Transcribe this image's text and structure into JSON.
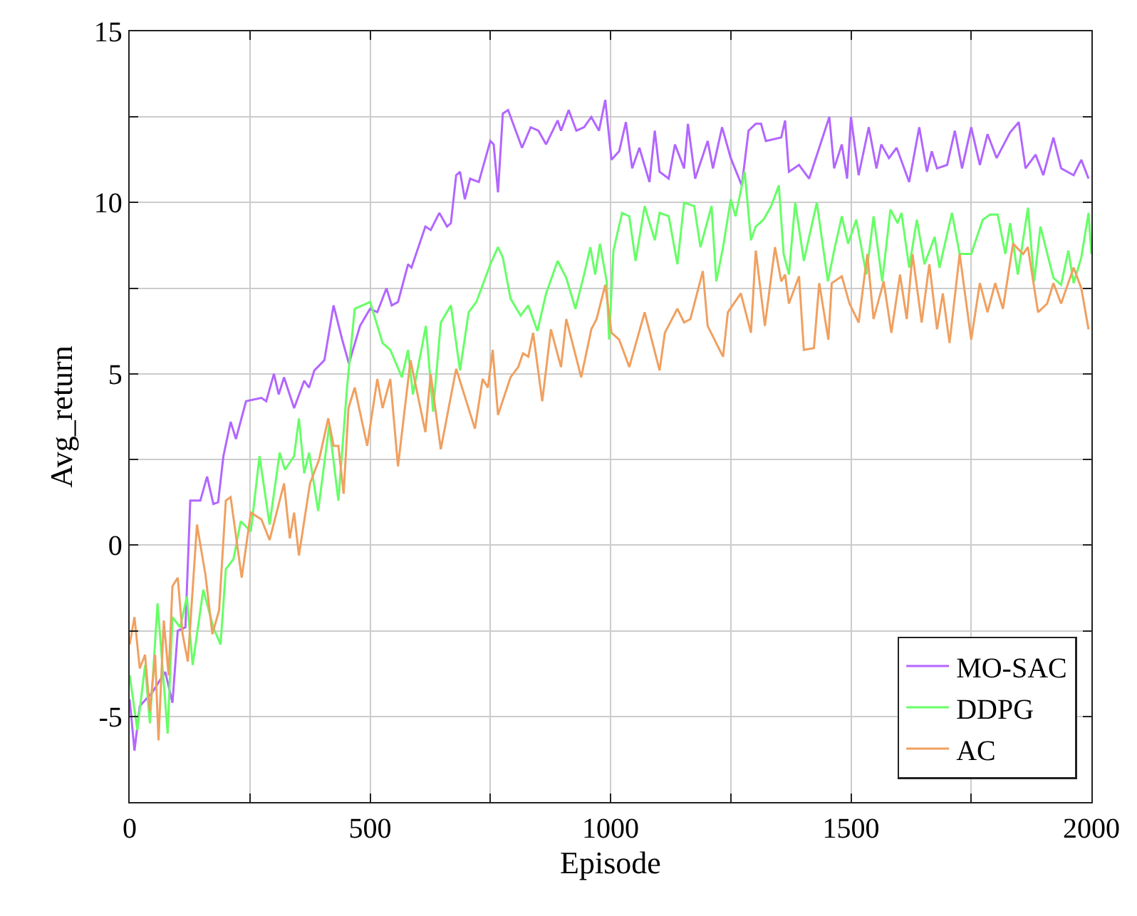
{
  "chart_data": {
    "type": "line",
    "xlabel": "Episode",
    "ylabel": "Avg_return",
    "xlim": [
      0,
      2000
    ],
    "ylim": [
      -7.5,
      15
    ],
    "xticks": [
      0,
      {
        "value": 250,
        "label": null
      },
      500,
      {
        "value": 750,
        "label": null
      },
      1000,
      {
        "value": 1250,
        "label": null
      },
      1500,
      {
        "value": 1750,
        "label": null
      },
      2000
    ],
    "yticks": [
      {
        "value": -7.5,
        "label": null
      },
      -5,
      {
        "value": -2.5,
        "label": null
      },
      0,
      {
        "value": 2.5,
        "label": null
      },
      5,
      {
        "value": 7.5,
        "label": null
      },
      10,
      {
        "value": 12.5,
        "label": null
      },
      15
    ],
    "grid": true,
    "legend": "bottom right",
    "line_style": "solid",
    "marker": "none",
    "series": [
      {
        "name": "MO-SAC",
        "color": "#b266ff",
        "x": [
          0,
          10,
          21,
          47,
          74,
          89,
          100,
          116,
          126,
          147,
          161,
          174,
          184,
          195,
          210,
          221,
          242,
          274,
          284,
          300,
          310,
          321,
          342,
          363,
          373,
          384,
          405,
          424,
          442,
          456,
          479,
          500,
          515,
          534,
          545,
          558,
          579,
          586,
          615,
          626,
          644,
          660,
          668,
          679,
          687,
          697,
          708,
          726,
          750,
          757,
          766,
          776,
          787,
          816,
          834,
          850,
          866,
          890,
          897,
          913,
          929,
          945,
          960,
          976,
          989,
          1002,
          1018,
          1032,
          1045,
          1060,
          1081,
          1092,
          1102,
          1121,
          1134,
          1153,
          1161,
          1176,
          1202,
          1213,
          1232,
          1250,
          1273,
          1287,
          1302,
          1313,
          1323,
          1355,
          1363,
          1371,
          1392,
          1413,
          1434,
          1455,
          1465,
          1481,
          1492,
          1500,
          1516,
          1537,
          1553,
          1563,
          1579,
          1595,
          1621,
          1642,
          1658,
          1668,
          1679,
          1700,
          1716,
          1731,
          1750,
          1768,
          1784,
          1803,
          1831,
          1849,
          1863,
          1884,
          1900,
          1921,
          1937,
          1963,
          1979,
          1994
        ],
        "values": [
          -4.5,
          -6,
          -4.7,
          -4.3,
          -3.7,
          -4.6,
          -2.5,
          -2.4,
          1.3,
          1.3,
          2.0,
          1.2,
          1.25,
          2.6,
          3.6,
          3.1,
          4.2,
          4.3,
          4.2,
          5.0,
          4.4,
          4.9,
          4.0,
          4.8,
          4.6,
          5.1,
          5.4,
          7.0,
          6.0,
          5.3,
          6.4,
          6.9,
          6.8,
          7.5,
          7.0,
          7.1,
          8.2,
          8.1,
          9.3,
          9.2,
          9.7,
          9.3,
          9.4,
          10.8,
          10.9,
          10.1,
          10.7,
          10.6,
          11.8,
          11.7,
          10.3,
          12.6,
          12.7,
          11.6,
          12.2,
          12.1,
          11.7,
          12.4,
          12.1,
          12.7,
          12.1,
          12.2,
          12.5,
          12.1,
          13.0,
          11.25,
          11.5,
          12.35,
          11.0,
          11.6,
          10.6,
          12.1,
          10.9,
          10.7,
          11.7,
          11.0,
          12.3,
          10.7,
          11.8,
          11.0,
          12.2,
          11.3,
          10.5,
          12.1,
          12.3,
          12.3,
          11.8,
          11.9,
          12.4,
          10.9,
          11.1,
          10.7,
          11.6,
          12.5,
          11.0,
          11.7,
          10.7,
          12.5,
          10.8,
          12.2,
          11.0,
          11.7,
          11.3,
          11.6,
          10.6,
          12.2,
          10.9,
          11.5,
          11.0,
          11.1,
          12.1,
          11.0,
          12.2,
          11.1,
          12.0,
          11.3,
          12.05,
          12.35,
          11.0,
          11.4,
          10.8,
          11.9,
          11.0,
          10.8,
          11.25,
          10.7
        ]
      },
      {
        "name": "DDPG",
        "color": "#66ff66",
        "x": [
          0,
          16,
          32,
          42,
          58,
          68,
          79,
          89,
          105,
          119,
          131,
          153,
          174,
          189,
          200,
          216,
          231,
          252,
          270,
          291,
          312,
          323,
          342,
          352,
          363,
          373,
          392,
          415,
          434,
          452,
          468,
          500,
          526,
          542,
          566,
          579,
          589,
          616,
          631,
          647,
          668,
          687,
          705,
          721,
          750,
          766,
          776,
          792,
          813,
          829,
          848,
          866,
          890,
          908,
          927,
          945,
          958,
          968,
          978,
          992,
          997,
          1006,
          1024,
          1039,
          1052,
          1071,
          1092,
          1102,
          1121,
          1139,
          1153,
          1174,
          1187,
          1210,
          1220,
          1234,
          1250,
          1260,
          1279,
          1292,
          1302,
          1318,
          1334,
          1350,
          1360,
          1371,
          1384,
          1402,
          1429,
          1452,
          1465,
          1481,
          1494,
          1511,
          1532,
          1547,
          1565,
          1582,
          1597,
          1605,
          1621,
          1637,
          1653,
          1674,
          1684,
          1710,
          1726,
          1750,
          1774,
          1789,
          1805,
          1821,
          1831,
          1847,
          1868,
          1881,
          1894,
          1921,
          1937,
          1952,
          1963,
          1979,
          1994,
          2000
        ],
        "values": [
          -3.8,
          -5.4,
          -3.5,
          -5.2,
          -1.7,
          -3.5,
          -5.5,
          -2.1,
          -2.4,
          -1.5,
          -3.5,
          -1.3,
          -2.4,
          -2.9,
          -0.7,
          -0.4,
          0.7,
          0.4,
          2.6,
          0.6,
          2.7,
          2.2,
          2.6,
          3.7,
          2.1,
          2.7,
          1.0,
          3.5,
          1.3,
          4.6,
          6.9,
          7.1,
          5.9,
          5.7,
          4.9,
          5.7,
          4.4,
          6.4,
          3.9,
          6.5,
          7.0,
          5.1,
          6.8,
          7.1,
          8.2,
          8.7,
          8.4,
          7.2,
          6.7,
          7.0,
          6.25,
          7.35,
          8.3,
          7.8,
          6.9,
          7.9,
          8.7,
          7.9,
          8.8,
          7.7,
          6.0,
          8.6,
          9.7,
          9.6,
          8.3,
          9.9,
          8.9,
          9.7,
          9.6,
          8.2,
          10.0,
          9.9,
          8.7,
          9.9,
          7.7,
          8.7,
          10.1,
          9.6,
          10.9,
          8.9,
          9.3,
          9.5,
          9.9,
          10.5,
          8.5,
          7.9,
          10.0,
          8.3,
          10.0,
          7.7,
          8.6,
          9.6,
          8.8,
          9.5,
          7.9,
          9.6,
          7.7,
          9.8,
          9.4,
          9.7,
          8.1,
          9.5,
          8.2,
          9.0,
          8.1,
          9.7,
          8.5,
          8.5,
          9.5,
          9.65,
          9.65,
          8.5,
          9.4,
          7.9,
          9.85,
          7.7,
          9.3,
          7.8,
          7.6,
          8.6,
          7.65,
          8.4,
          9.7,
          8.5
        ]
      },
      {
        "name": "AC",
        "color": "#f0a060",
        "x": [
          0,
          10,
          21,
          32,
          42,
          53,
          60,
          71,
          81,
          89,
          100,
          110,
          121,
          140,
          158,
          172,
          186,
          200,
          210,
          233,
          252,
          274,
          291,
          321,
          333,
          342,
          352,
          375,
          394,
          413,
          424,
          434,
          445,
          455,
          468,
          494,
          515,
          526,
          542,
          558,
          584,
          615,
          626,
          647,
          679,
          718,
          734,
          745,
          755,
          766,
          792,
          808,
          818,
          829,
          839,
          858,
          876,
          897,
          908,
          939,
          960,
          971,
          989,
          1002,
          1018,
          1039,
          1071,
          1102,
          1113,
          1139,
          1153,
          1166,
          1192,
          1202,
          1234,
          1244,
          1271,
          1292,
          1302,
          1321,
          1342,
          1355,
          1363,
          1371,
          1392,
          1402,
          1423,
          1434,
          1453,
          1460,
          1481,
          1497,
          1516,
          1534,
          1547,
          1568,
          1584,
          1602,
          1616,
          1628,
          1647,
          1663,
          1679,
          1691,
          1705,
          1726,
          1750,
          1768,
          1784,
          1800,
          1816,
          1837,
          1858,
          1868,
          1889,
          1908,
          1921,
          1937,
          1963,
          1979,
          1994
        ],
        "values": [
          -2.9,
          -2.1,
          -3.6,
          -3.2,
          -4.85,
          -3.2,
          -5.7,
          -2.2,
          -3.8,
          -1.2,
          -0.95,
          -2.6,
          -3.4,
          0.6,
          -0.9,
          -2.6,
          -1.9,
          1.3,
          1.4,
          -0.95,
          0.95,
          0.75,
          0.15,
          1.8,
          0.2,
          0.95,
          -0.3,
          1.8,
          2.5,
          3.7,
          2.9,
          2.9,
          1.5,
          4.0,
          4.6,
          2.9,
          4.85,
          4.0,
          4.85,
          2.3,
          5.4,
          3.3,
          5.0,
          2.8,
          5.15,
          3.4,
          4.85,
          4.6,
          5.7,
          3.8,
          4.9,
          5.2,
          5.6,
          5.5,
          6.2,
          4.2,
          6.3,
          5.2,
          6.6,
          4.9,
          6.3,
          6.6,
          7.6,
          6.2,
          6.0,
          5.2,
          6.8,
          5.1,
          6.2,
          6.9,
          6.5,
          6.6,
          8.0,
          6.4,
          5.5,
          6.8,
          7.35,
          6.2,
          8.6,
          6.4,
          8.7,
          7.7,
          7.9,
          7.05,
          7.85,
          5.7,
          5.75,
          7.65,
          6.0,
          7.65,
          7.85,
          7.05,
          6.5,
          8.5,
          6.6,
          7.7,
          6.2,
          7.9,
          6.6,
          8.5,
          6.5,
          8.2,
          6.3,
          7.35,
          5.9,
          8.5,
          6.0,
          7.65,
          6.8,
          7.65,
          6.9,
          8.8,
          8.5,
          8.7,
          6.8,
          7.05,
          7.65,
          7.05,
          8.1,
          7.5,
          6.3
        ]
      }
    ]
  }
}
